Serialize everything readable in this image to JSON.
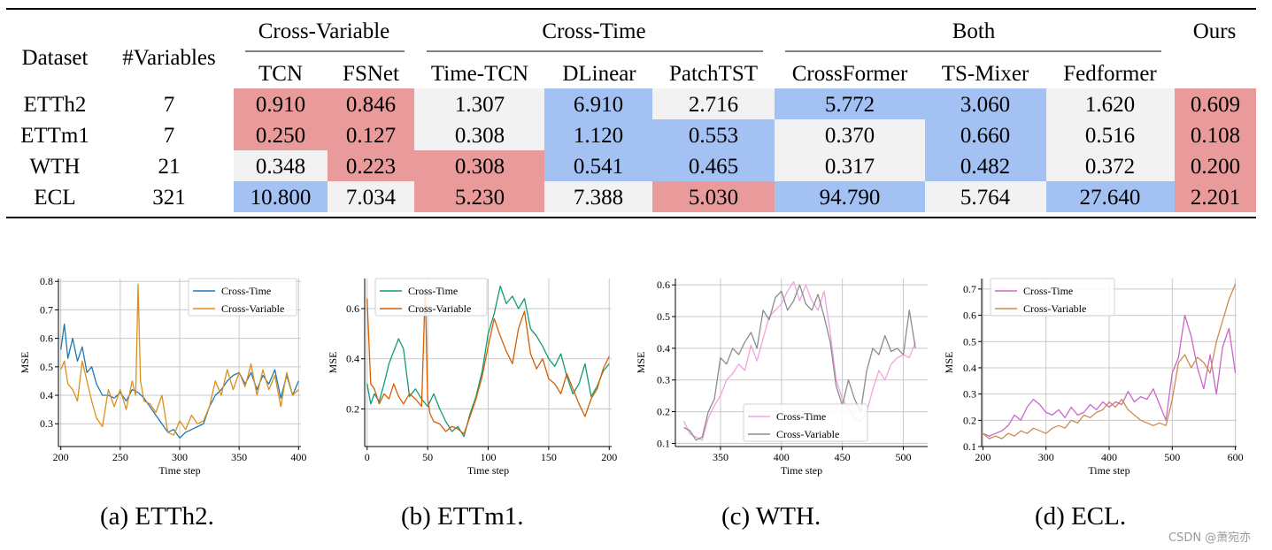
{
  "table": {
    "header_left": [
      "Dataset",
      "#Variables"
    ],
    "groups": [
      {
        "label": "Cross-Variable",
        "columns": [
          "TCN",
          "FSNet"
        ]
      },
      {
        "label": "Cross-Time",
        "columns": [
          "Time-TCN",
          "DLinear",
          "PatchTST"
        ]
      },
      {
        "label": "Both",
        "columns": [
          "CrossFormer",
          "TS-Mixer",
          "Fedformer"
        ]
      },
      {
        "label": "Ours",
        "columns": [
          ""
        ]
      }
    ],
    "cell_colors": {
      "red": "#e99a9a",
      "blue": "#a4c1f4",
      "gray": "#f2f2f2"
    },
    "rows": [
      {
        "dataset": "ETTh2",
        "variables": "7",
        "values": [
          "0.910",
          "0.846",
          "1.307",
          "6.910",
          "2.716",
          "5.772",
          "3.060",
          "1.620",
          "0.609"
        ],
        "colors": [
          "red",
          "red",
          "gray",
          "blue",
          "gray",
          "blue",
          "blue",
          "gray",
          "red"
        ]
      },
      {
        "dataset": "ETTm1",
        "variables": "7",
        "values": [
          "0.250",
          "0.127",
          "0.308",
          "1.120",
          "0.553",
          "0.370",
          "0.660",
          "0.516",
          "0.108"
        ],
        "colors": [
          "red",
          "red",
          "gray",
          "blue",
          "blue",
          "gray",
          "blue",
          "gray",
          "red"
        ]
      },
      {
        "dataset": "WTH",
        "variables": "21",
        "values": [
          "0.348",
          "0.223",
          "0.308",
          "0.541",
          "0.465",
          "0.317",
          "0.482",
          "0.372",
          "0.200"
        ],
        "colors": [
          "gray",
          "red",
          "red",
          "blue",
          "blue",
          "gray",
          "blue",
          "gray",
          "red"
        ]
      },
      {
        "dataset": "ECL",
        "variables": "321",
        "values": [
          "10.800",
          "7.034",
          "5.230",
          "7.388",
          "5.030",
          "94.790",
          "5.764",
          "27.640",
          "2.201"
        ],
        "colors": [
          "blue",
          "gray",
          "red",
          "gray",
          "red",
          "blue",
          "gray",
          "blue",
          "red"
        ]
      }
    ]
  },
  "chart_data": [
    {
      "type": "line",
      "caption": "(a) ETTh2.",
      "xlabel": "Time step",
      "ylabel": "MSE",
      "xlim": [
        198,
        402
      ],
      "ylim": [
        0.22,
        0.81
      ],
      "xticks": [
        200,
        250,
        300,
        350,
        400
      ],
      "yticks": [
        0.3,
        0.4,
        0.5,
        0.6,
        0.7,
        0.8
      ],
      "ytick_labels": [
        "0.3",
        "0.4",
        "0.5",
        "0.6",
        "0.7",
        "0.8"
      ],
      "legend_position": "top-right",
      "series": [
        {
          "name": "Cross-Time",
          "color": "#1f77b4",
          "x": [
            200,
            203,
            206,
            210,
            214,
            218,
            222,
            226,
            230,
            235,
            240,
            245,
            250,
            255,
            260,
            265,
            270,
            275,
            280,
            285,
            290,
            295,
            300,
            305,
            310,
            315,
            320,
            325,
            330,
            335,
            340,
            345,
            350,
            355,
            360,
            365,
            370,
            375,
            380,
            385,
            390,
            395,
            400
          ],
          "y": [
            0.56,
            0.65,
            0.53,
            0.6,
            0.52,
            0.57,
            0.48,
            0.5,
            0.44,
            0.4,
            0.4,
            0.39,
            0.41,
            0.38,
            0.42,
            0.41,
            0.39,
            0.36,
            0.33,
            0.3,
            0.27,
            0.28,
            0.25,
            0.27,
            0.28,
            0.29,
            0.3,
            0.36,
            0.4,
            0.42,
            0.45,
            0.47,
            0.48,
            0.44,
            0.48,
            0.42,
            0.47,
            0.44,
            0.49,
            0.39,
            0.47,
            0.4,
            0.45
          ]
        },
        {
          "name": "Cross-Variable",
          "color": "#dd8f1a",
          "x": [
            200,
            203,
            206,
            210,
            214,
            218,
            222,
            226,
            230,
            235,
            240,
            245,
            250,
            255,
            260,
            263,
            265,
            267,
            270,
            275,
            280,
            285,
            290,
            295,
            300,
            305,
            310,
            315,
            320,
            325,
            330,
            335,
            340,
            345,
            350,
            355,
            360,
            365,
            370,
            375,
            380,
            385,
            390,
            395,
            400
          ],
          "y": [
            0.49,
            0.52,
            0.44,
            0.42,
            0.38,
            0.52,
            0.45,
            0.38,
            0.32,
            0.29,
            0.42,
            0.36,
            0.42,
            0.35,
            0.45,
            0.4,
            0.79,
            0.45,
            0.38,
            0.37,
            0.34,
            0.4,
            0.27,
            0.26,
            0.31,
            0.28,
            0.33,
            0.3,
            0.31,
            0.36,
            0.45,
            0.4,
            0.49,
            0.42,
            0.48,
            0.43,
            0.51,
            0.4,
            0.49,
            0.42,
            0.47,
            0.36,
            0.48,
            0.4,
            0.42
          ]
        }
      ]
    },
    {
      "type": "line",
      "caption": "(b) ETTm1.",
      "xlabel": "Time step",
      "ylabel": "MSE",
      "xlim": [
        -2,
        202
      ],
      "ylim": [
        0.05,
        0.72
      ],
      "xticks": [
        0,
        50,
        100,
        150,
        200
      ],
      "yticks": [
        0.2,
        0.4,
        0.6
      ],
      "ytick_labels": [
        "0.2",
        "0.4",
        "0.6"
      ],
      "legend_position": "top-left",
      "series": [
        {
          "name": "Cross-Time",
          "color": "#119a76",
          "x": [
            0,
            3,
            6,
            10,
            14,
            18,
            22,
            26,
            30,
            35,
            40,
            45,
            50,
            55,
            60,
            65,
            70,
            75,
            80,
            85,
            90,
            95,
            100,
            105,
            110,
            115,
            120,
            125,
            130,
            135,
            140,
            145,
            150,
            155,
            160,
            165,
            170,
            175,
            180,
            185,
            190,
            195,
            200
          ],
          "y": [
            0.3,
            0.22,
            0.26,
            0.23,
            0.3,
            0.38,
            0.43,
            0.48,
            0.44,
            0.25,
            0.28,
            0.24,
            0.21,
            0.26,
            0.2,
            0.15,
            0.11,
            0.13,
            0.09,
            0.18,
            0.25,
            0.35,
            0.5,
            0.58,
            0.69,
            0.62,
            0.65,
            0.6,
            0.64,
            0.52,
            0.49,
            0.45,
            0.4,
            0.37,
            0.42,
            0.33,
            0.26,
            0.3,
            0.38,
            0.25,
            0.29,
            0.35,
            0.38
          ]
        },
        {
          "name": "Cross-Variable",
          "color": "#d55e00",
          "x": [
            0,
            3,
            6,
            10,
            14,
            18,
            22,
            26,
            30,
            35,
            40,
            45,
            48,
            50,
            52,
            55,
            60,
            65,
            70,
            75,
            80,
            85,
            90,
            95,
            100,
            105,
            110,
            115,
            120,
            125,
            130,
            135,
            140,
            145,
            150,
            155,
            160,
            165,
            170,
            175,
            180,
            185,
            190,
            195,
            200
          ],
          "y": [
            0.64,
            0.3,
            0.28,
            0.22,
            0.26,
            0.24,
            0.3,
            0.25,
            0.22,
            0.26,
            0.24,
            0.21,
            0.68,
            0.24,
            0.18,
            0.15,
            0.14,
            0.11,
            0.13,
            0.12,
            0.1,
            0.17,
            0.24,
            0.33,
            0.45,
            0.56,
            0.49,
            0.43,
            0.38,
            0.52,
            0.59,
            0.42,
            0.36,
            0.4,
            0.32,
            0.3,
            0.26,
            0.34,
            0.28,
            0.22,
            0.17,
            0.24,
            0.28,
            0.36,
            0.41
          ]
        }
      ]
    },
    {
      "type": "line",
      "caption": "(c) WTH.",
      "xlabel": "Time step",
      "ylabel": "MSE",
      "xlim": [
        313,
        520
      ],
      "ylim": [
        0.09,
        0.62
      ],
      "xticks": [
        350,
        400,
        450,
        500
      ],
      "yticks": [
        0.1,
        0.2,
        0.3,
        0.4,
        0.5,
        0.6
      ],
      "ytick_labels": [
        "0.1",
        "0.2",
        "0.3",
        "0.4",
        "0.5",
        "0.6"
      ],
      "legend_position": "bottom-center",
      "series": [
        {
          "name": "Cross-Time",
          "color": "#f0a3e0",
          "x": [
            320,
            325,
            330,
            335,
            340,
            345,
            350,
            355,
            360,
            365,
            370,
            375,
            380,
            385,
            390,
            395,
            400,
            405,
            410,
            415,
            420,
            425,
            430,
            435,
            440,
            445,
            450,
            455,
            460,
            465,
            470,
            475,
            480,
            485,
            490,
            495,
            500,
            505,
            510
          ],
          "y": [
            0.17,
            0.13,
            0.12,
            0.11,
            0.18,
            0.22,
            0.25,
            0.3,
            0.32,
            0.35,
            0.33,
            0.41,
            0.36,
            0.43,
            0.5,
            0.52,
            0.54,
            0.58,
            0.61,
            0.55,
            0.6,
            0.55,
            0.52,
            0.58,
            0.45,
            0.3,
            0.24,
            0.21,
            0.18,
            0.17,
            0.2,
            0.27,
            0.33,
            0.3,
            0.35,
            0.37,
            0.38,
            0.37,
            0.42
          ]
        },
        {
          "name": "Cross-Variable",
          "color": "#8c8c8c",
          "x": [
            320,
            325,
            330,
            335,
            340,
            345,
            350,
            355,
            360,
            365,
            370,
            375,
            380,
            385,
            390,
            395,
            400,
            405,
            410,
            415,
            420,
            425,
            430,
            435,
            440,
            445,
            450,
            455,
            460,
            465,
            470,
            475,
            480,
            485,
            490,
            495,
            500,
            505,
            510
          ],
          "y": [
            0.15,
            0.14,
            0.11,
            0.12,
            0.2,
            0.24,
            0.37,
            0.35,
            0.4,
            0.38,
            0.42,
            0.45,
            0.4,
            0.52,
            0.49,
            0.56,
            0.58,
            0.52,
            0.55,
            0.6,
            0.54,
            0.52,
            0.57,
            0.5,
            0.42,
            0.28,
            0.22,
            0.3,
            0.24,
            0.2,
            0.33,
            0.4,
            0.38,
            0.44,
            0.39,
            0.4,
            0.38,
            0.52,
            0.4
          ]
        }
      ]
    },
    {
      "type": "line",
      "caption": "(d) ECL.",
      "xlabel": "Time step",
      "ylabel": "MSE",
      "xlim": [
        198,
        602
      ],
      "ylim": [
        0.1,
        0.74
      ],
      "xticks": [
        200,
        300,
        400,
        500,
        600
      ],
      "yticks": [
        0.1,
        0.2,
        0.3,
        0.4,
        0.5,
        0.6,
        0.7
      ],
      "ytick_labels": [
        "0.1",
        "0.2",
        "0.3",
        "0.4",
        "0.5",
        "0.6",
        "0.7"
      ],
      "legend_position": "top-left",
      "series": [
        {
          "name": "Cross-Time",
          "color": "#cc66cc",
          "x": [
            200,
            210,
            220,
            230,
            240,
            250,
            260,
            270,
            280,
            290,
            300,
            310,
            320,
            330,
            340,
            350,
            360,
            370,
            380,
            390,
            400,
            410,
            420,
            430,
            440,
            450,
            460,
            470,
            480,
            490,
            500,
            510,
            520,
            530,
            540,
            550,
            560,
            570,
            580,
            590,
            600
          ],
          "y": [
            0.15,
            0.14,
            0.15,
            0.16,
            0.18,
            0.22,
            0.2,
            0.25,
            0.28,
            0.26,
            0.23,
            0.22,
            0.24,
            0.21,
            0.25,
            0.22,
            0.23,
            0.26,
            0.24,
            0.27,
            0.25,
            0.27,
            0.26,
            0.31,
            0.27,
            0.29,
            0.28,
            0.32,
            0.26,
            0.2,
            0.38,
            0.44,
            0.6,
            0.52,
            0.4,
            0.32,
            0.45,
            0.3,
            0.48,
            0.55,
            0.38
          ]
        },
        {
          "name": "Cross-Variable",
          "color": "#cc8a4f",
          "x": [
            200,
            210,
            220,
            230,
            240,
            250,
            260,
            270,
            280,
            290,
            300,
            310,
            320,
            330,
            340,
            350,
            360,
            370,
            380,
            390,
            400,
            410,
            420,
            430,
            440,
            450,
            460,
            470,
            480,
            490,
            500,
            510,
            520,
            530,
            540,
            550,
            560,
            570,
            580,
            590,
            600
          ],
          "y": [
            0.15,
            0.13,
            0.14,
            0.13,
            0.15,
            0.14,
            0.16,
            0.15,
            0.17,
            0.16,
            0.15,
            0.17,
            0.18,
            0.17,
            0.2,
            0.19,
            0.22,
            0.21,
            0.23,
            0.24,
            0.27,
            0.25,
            0.28,
            0.24,
            0.22,
            0.2,
            0.19,
            0.18,
            0.19,
            0.18,
            0.28,
            0.42,
            0.45,
            0.4,
            0.44,
            0.42,
            0.38,
            0.5,
            0.58,
            0.66,
            0.72
          ]
        }
      ]
    }
  ],
  "watermark": "CSDN @萧宛亦"
}
